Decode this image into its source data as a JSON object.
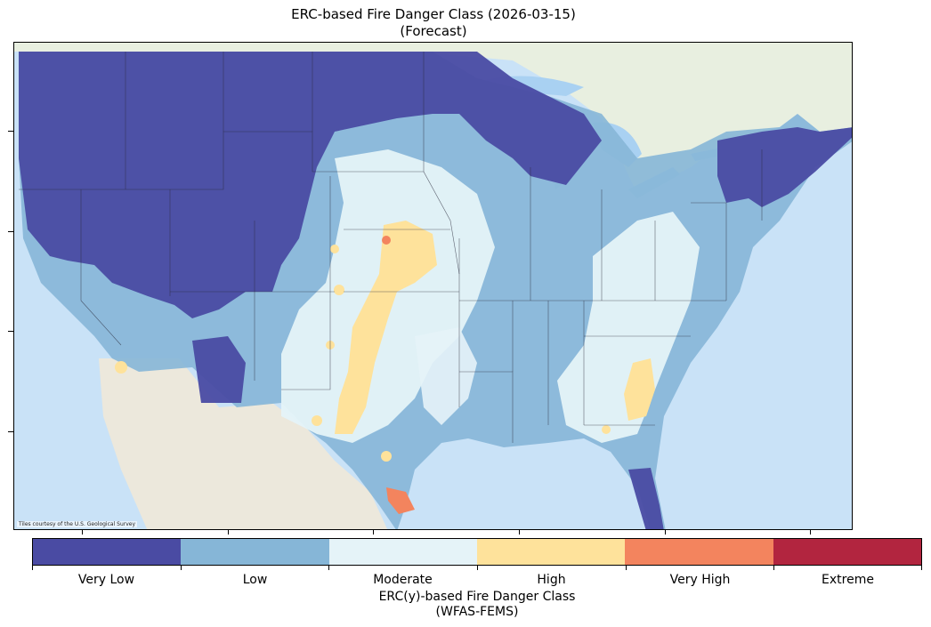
{
  "title": {
    "line1": "ERC-based Fire Danger Class (2026-03-15)",
    "line2": "(Forecast)"
  },
  "map": {
    "attribution": "Tiles courtesy of the U.S. Geological Survey",
    "colors": {
      "ocean": "#c9e2f7",
      "land": "#eef0ea",
      "mexico": "#ece8dc",
      "canada": "#e8efe0",
      "lakes": "#a9d1f2"
    }
  },
  "legend": {
    "title_line1": "ERC(y)-based Fire Danger Class",
    "title_line2": "(WFAS-FEMS)",
    "classes": [
      {
        "label": "Very Low",
        "color": "#4a4ba3"
      },
      {
        "label": "Low",
        "color": "#86b6d7"
      },
      {
        "label": "Moderate",
        "color": "#e5f3f8"
      },
      {
        "label": "High",
        "color": "#fee29b"
      },
      {
        "label": "Very High",
        "color": "#f3845e"
      },
      {
        "label": "Extreme",
        "color": "#b2253f"
      }
    ]
  }
}
